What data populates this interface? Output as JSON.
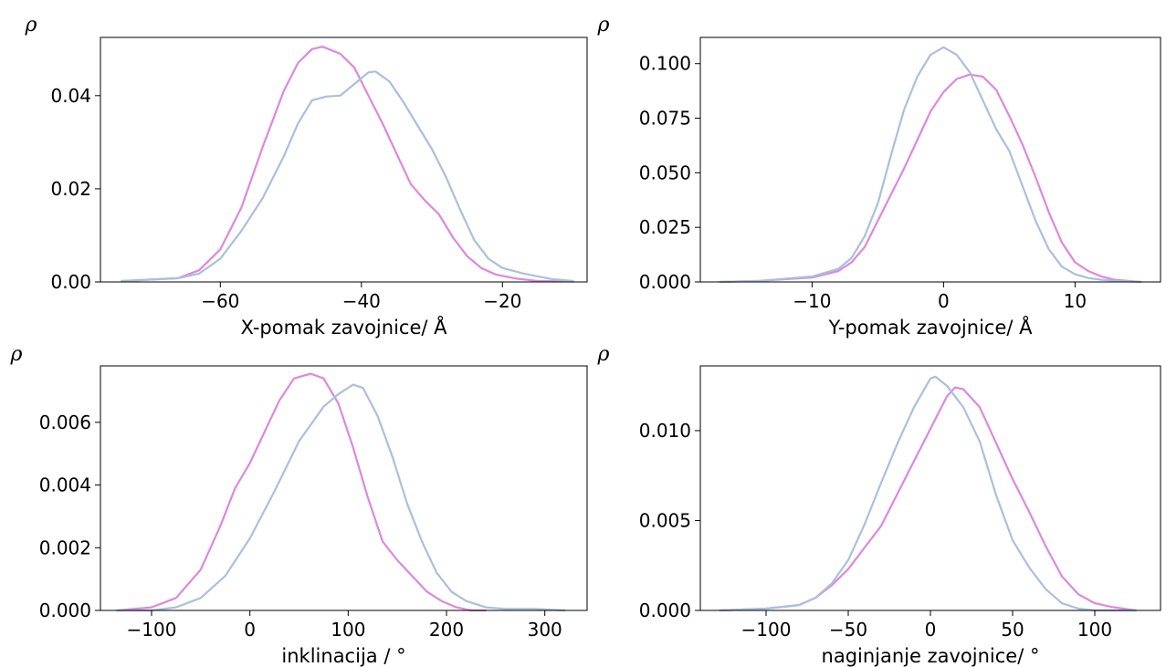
{
  "colors": {
    "series_a": "#dd88dd",
    "series_b": "#a9c0dc"
  },
  "chart_data": [
    {
      "type": "line",
      "panel": "top-left",
      "ylabel": "ρ",
      "xlabel": "X-pomak zavojnice/ Å",
      "xlim": [
        -77,
        -8
      ],
      "ylim": [
        0,
        0.0525
      ],
      "xticks": [
        -60,
        -40,
        -20
      ],
      "xtick_labels": [
        "−60",
        "−40",
        "−20"
      ],
      "yticks": [
        0,
        0.02,
        0.04
      ],
      "ytick_labels": [
        "0.00",
        "0.02",
        "0.04"
      ],
      "grid": false,
      "series": [
        {
          "color_key": "series_a",
          "x": [
            -74,
            -66,
            -63,
            -60,
            -57,
            -54,
            -51,
            -49,
            -47,
            -45.5,
            -43,
            -41,
            -39,
            -37,
            -35,
            -33,
            -31,
            -29,
            -27,
            -25,
            -23,
            -21,
            -18,
            -15,
            -10
          ],
          "y": [
            0.0002,
            0.0008,
            0.0025,
            0.007,
            0.016,
            0.029,
            0.041,
            0.047,
            0.05,
            0.0505,
            0.049,
            0.046,
            0.04,
            0.034,
            0.0275,
            0.021,
            0.0175,
            0.0145,
            0.0095,
            0.0055,
            0.003,
            0.0016,
            0.0007,
            0.0002,
            0.0001
          ]
        },
        {
          "color_key": "series_b",
          "x": [
            -74,
            -66,
            -63,
            -60,
            -57,
            -54,
            -51,
            -49,
            -47,
            -45,
            -43,
            -41,
            -39,
            -38,
            -36,
            -34,
            -32,
            -30,
            -28,
            -26,
            -24,
            -22,
            -20,
            -17,
            -13,
            -10
          ],
          "y": [
            0.0002,
            0.0008,
            0.0018,
            0.005,
            0.011,
            0.018,
            0.027,
            0.034,
            0.039,
            0.0398,
            0.04,
            0.0425,
            0.045,
            0.0452,
            0.043,
            0.0385,
            0.0335,
            0.0285,
            0.0225,
            0.0155,
            0.009,
            0.005,
            0.003,
            0.0018,
            0.0006,
            0.0002
          ]
        }
      ]
    },
    {
      "type": "line",
      "panel": "top-right",
      "ylabel": "ρ",
      "xlabel": "Y-pomak zavojnice/ Å",
      "xlim": [
        -18.5,
        16.5
      ],
      "ylim": [
        0,
        0.112
      ],
      "xticks": [
        -10,
        0,
        10
      ],
      "xtick_labels": [
        "−10",
        "0",
        "10"
      ],
      "yticks": [
        0,
        0.025,
        0.05,
        0.075,
        0.1
      ],
      "ytick_labels": [
        "0.000",
        "0.025",
        "0.050",
        "0.075",
        "0.100"
      ],
      "grid": false,
      "series": [
        {
          "color_key": "series_a",
          "x": [
            -17,
            -14,
            -10,
            -8,
            -7,
            -6,
            -5,
            -4,
            -3,
            -2,
            -1,
            0,
            1,
            2,
            3,
            4,
            5,
            6,
            7,
            8,
            9,
            10,
            11,
            12,
            13,
            15
          ],
          "y": [
            0,
            0.0005,
            0.002,
            0.005,
            0.009,
            0.016,
            0.028,
            0.04,
            0.052,
            0.065,
            0.078,
            0.087,
            0.093,
            0.095,
            0.094,
            0.088,
            0.076,
            0.063,
            0.048,
            0.032,
            0.018,
            0.009,
            0.005,
            0.0025,
            0.001,
            0
          ]
        },
        {
          "color_key": "series_b",
          "x": [
            -17,
            -14,
            -10,
            -8,
            -7,
            -6,
            -5,
            -4,
            -3,
            -2,
            -1,
            0,
            1,
            2,
            3,
            4,
            5,
            6,
            7,
            8,
            9,
            10,
            11,
            12,
            13,
            15
          ],
          "y": [
            0,
            0.0005,
            0.0025,
            0.006,
            0.011,
            0.021,
            0.036,
            0.058,
            0.079,
            0.094,
            0.104,
            0.1075,
            0.104,
            0.096,
            0.083,
            0.07,
            0.06,
            0.044,
            0.028,
            0.015,
            0.007,
            0.0035,
            0.0018,
            0.001,
            0.0005,
            0
          ]
        }
      ]
    },
    {
      "type": "line",
      "panel": "bottom-left",
      "ylabel": "ρ",
      "xlabel": "inklinacija / °",
      "xlim": [
        -152,
        343
      ],
      "ylim": [
        0,
        0.0078
      ],
      "xticks": [
        -100,
        0,
        100,
        200,
        300
      ],
      "xtick_labels": [
        "−100",
        "0",
        "100",
        "200",
        "300"
      ],
      "yticks": [
        0,
        0.002,
        0.004,
        0.006
      ],
      "ytick_labels": [
        "0.000",
        "0.002",
        "0.004",
        "0.006"
      ],
      "grid": false,
      "series": [
        {
          "color_key": "series_a",
          "x": [
            -135,
            -100,
            -75,
            -50,
            -30,
            -15,
            0,
            15,
            30,
            45,
            62,
            75,
            90,
            105,
            120,
            135,
            150,
            165,
            180,
            195,
            210,
            225,
            240
          ],
          "y": [
            0,
            0.0001,
            0.0004,
            0.0013,
            0.0027,
            0.0039,
            0.0047,
            0.0057,
            0.0067,
            0.0074,
            0.00755,
            0.0074,
            0.0066,
            0.0052,
            0.0036,
            0.0022,
            0.0016,
            0.0011,
            0.0006,
            0.0003,
            0.0001,
            0,
            0
          ]
        },
        {
          "color_key": "series_b",
          "x": [
            -135,
            -100,
            -75,
            -50,
            -25,
            0,
            25,
            50,
            75,
            90,
            105,
            115,
            130,
            145,
            160,
            175,
            190,
            205,
            220,
            240,
            260,
            290,
            320
          ],
          "y": [
            0,
            0,
            0.0001,
            0.0004,
            0.0011,
            0.0023,
            0.0038,
            0.0054,
            0.0065,
            0.0069,
            0.0072,
            0.0071,
            0.0062,
            0.0049,
            0.0034,
            0.0022,
            0.0012,
            0.0006,
            0.0003,
            0.0001,
            5e-05,
            5e-05,
            0
          ]
        }
      ]
    },
    {
      "type": "line",
      "panel": "bottom-right",
      "ylabel": "ρ",
      "xlabel": "naginjanje zavojnice/ °",
      "xlim": [
        -140,
        140
      ],
      "ylim": [
        0,
        0.0136
      ],
      "xticks": [
        -100,
        -50,
        0,
        50,
        100
      ],
      "xtick_labels": [
        "−100",
        "−50",
        "0",
        "50",
        "100"
      ],
      "yticks": [
        0,
        0.005,
        0.01
      ],
      "ytick_labels": [
        "0.000",
        "0.005",
        "0.010"
      ],
      "grid": false,
      "series": [
        {
          "color_key": "series_a",
          "x": [
            -128,
            -100,
            -80,
            -70,
            -60,
            -50,
            -40,
            -30,
            -20,
            -10,
            0,
            10,
            15,
            20,
            30,
            40,
            50,
            60,
            70,
            80,
            90,
            100,
            110,
            125
          ],
          "y": [
            0,
            0.0001,
            0.0003,
            0.0007,
            0.0014,
            0.0023,
            0.0035,
            0.0047,
            0.0065,
            0.0083,
            0.0101,
            0.0119,
            0.0124,
            0.0123,
            0.0113,
            0.0093,
            0.0073,
            0.0055,
            0.0036,
            0.0019,
            0.0009,
            0.0004,
            0.0002,
            0
          ]
        },
        {
          "color_key": "series_b",
          "x": [
            -128,
            -100,
            -80,
            -70,
            -60,
            -50,
            -40,
            -30,
            -20,
            -10,
            0,
            3,
            10,
            20,
            30,
            40,
            50,
            60,
            70,
            80,
            90,
            100,
            110,
            125
          ],
          "y": [
            0,
            0.0001,
            0.0003,
            0.0007,
            0.0015,
            0.0028,
            0.0048,
            0.0071,
            0.0093,
            0.0113,
            0.0129,
            0.013,
            0.0125,
            0.0113,
            0.0094,
            0.0064,
            0.0039,
            0.0024,
            0.0012,
            0.0004,
            0.0001,
            0,
            0,
            0
          ]
        }
      ]
    }
  ]
}
